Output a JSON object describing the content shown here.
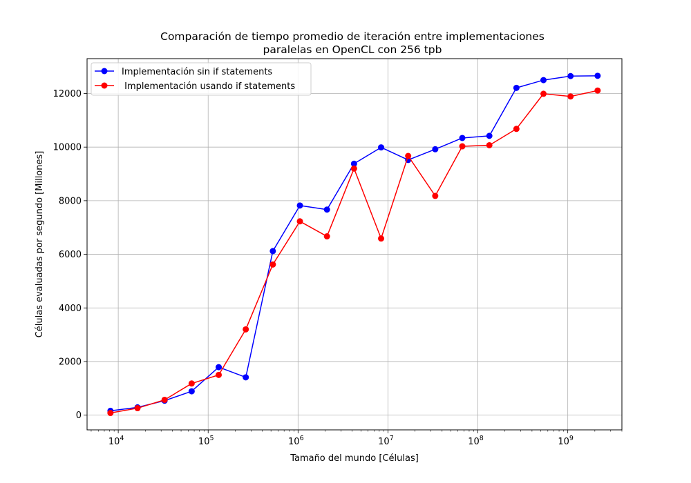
{
  "chart_data": {
    "type": "line",
    "title": [
      "Comparación de tiempo promedio de iteración entre implementaciones",
      "paralelas en OpenCL con 256 tpb"
    ],
    "xlabel": "Tamaño del mundo [Células]",
    "ylabel": "Células evaluadas por segundo [Millones]",
    "xscale": "log",
    "xlim": [
      4500,
      4000000000
    ],
    "ylim": [
      -550,
      13300
    ],
    "x_major_ticks": [
      10000,
      100000,
      1000000,
      10000000,
      100000000,
      1000000000
    ],
    "x_tick_labels": [
      {
        "base": "10",
        "exp": "4"
      },
      {
        "base": "10",
        "exp": "5"
      },
      {
        "base": "10",
        "exp": "6"
      },
      {
        "base": "10",
        "exp": "7"
      },
      {
        "base": "10",
        "exp": "8"
      },
      {
        "base": "10",
        "exp": "9"
      }
    ],
    "y_ticks": [
      0,
      2000,
      4000,
      6000,
      8000,
      10000,
      12000
    ],
    "y_tick_labels": [
      "0",
      "2000",
      "4000",
      "6000",
      "8000",
      "10000",
      "12000"
    ],
    "grid": true,
    "legend_position": "top-left",
    "x": [
      8192,
      16384,
      32768,
      65536,
      131072,
      262144,
      524288,
      1048576,
      2097152,
      4194304,
      8388608,
      16777216,
      33554432,
      67108864,
      134217728,
      268435456,
      536870912,
      1073741824,
      2147483648
    ],
    "series": [
      {
        "name": "Implementación sin if statements",
        "color": "#0000ff",
        "values": [
          160,
          290,
          540,
          890,
          1790,
          1410,
          6120,
          7820,
          7670,
          9380,
          9990,
          9520,
          9920,
          10340,
          10420,
          12210,
          12500,
          12650,
          12660
        ]
      },
      {
        "name": " Implementación usando if statements",
        "color": "#ff0000",
        "values": [
          80,
          260,
          570,
          1180,
          1500,
          3200,
          5620,
          7230,
          6670,
          9200,
          6590,
          9670,
          8180,
          10030,
          10070,
          10680,
          11990,
          11890,
          12110
        ]
      }
    ]
  }
}
